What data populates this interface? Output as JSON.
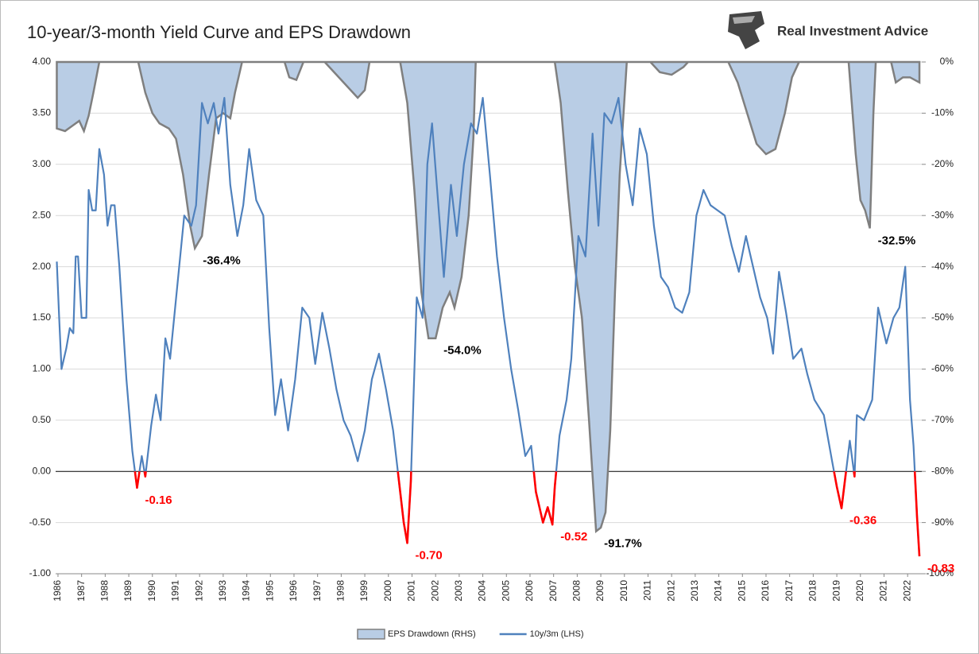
{
  "chart_data": {
    "type": "line",
    "title": "10-year/3-month Yield Curve and EPS Drawdown",
    "source": "Real Investment Advice",
    "xlim": [
      1985.9,
      2022.6
    ],
    "xticks": [
      1986,
      1987,
      1988,
      1989,
      1990,
      1991,
      1992,
      1993,
      1994,
      1995,
      1996,
      1997,
      1998,
      1999,
      2000,
      2001,
      2002,
      2003,
      2004,
      2005,
      2006,
      2007,
      2008,
      2009,
      2010,
      2011,
      2012,
      2013,
      2014,
      2015,
      2016,
      2017,
      2018,
      2019,
      2020,
      2021,
      2022
    ],
    "ylim": [
      -1,
      4
    ],
    "yticks": [
      {
        "value": -1,
        "label": "-1.00"
      },
      {
        "value": -0.5,
        "label": "-0.50"
      },
      {
        "value": 0,
        "label": "0.00"
      },
      {
        "value": 0.5,
        "label": "0.50"
      },
      {
        "value": 1,
        "label": "1.00"
      },
      {
        "value": 1.5,
        "label": "1.50"
      },
      {
        "value": 2,
        "label": "2.00"
      },
      {
        "value": 2.5,
        "label": "2.50"
      },
      {
        "value": 3,
        "label": "3.00"
      },
      {
        "value": 3.5,
        "label": "3.50"
      },
      {
        "value": 4,
        "label": "4.00"
      }
    ],
    "y2lim": [
      -100,
      0
    ],
    "y2ticks": [
      {
        "value": -100,
        "label": "-100%"
      },
      {
        "value": -90,
        "label": "-90%"
      },
      {
        "value": -80,
        "label": "-80%"
      },
      {
        "value": -70,
        "label": "-70%"
      },
      {
        "value": -60,
        "label": "-60%"
      },
      {
        "value": -50,
        "label": "-50%"
      },
      {
        "value": -40,
        "label": "-40%"
      },
      {
        "value": -30,
        "label": "-30%"
      },
      {
        "value": -20,
        "label": "-20%"
      },
      {
        "value": -10,
        "label": "-10%"
      },
      {
        "value": 0,
        "label": "0%"
      }
    ],
    "grid": true,
    "legend": "bottom",
    "series": [
      {
        "name": "EPS Drawdown (RHS)",
        "type": "area",
        "axis": "y2",
        "color": "#b9cde5",
        "edge_color": "#7f7f7f",
        "x": [
          1985.95,
          1986.3,
          1986.6,
          1986.9,
          1987.1,
          1987.3,
          1987.5,
          1987.75,
          1989.4,
          1989.7,
          1990.0,
          1990.3,
          1990.7,
          1991.0,
          1991.3,
          1991.6,
          1991.8,
          1992.1,
          1992.4,
          1992.7,
          1993.0,
          1993.3,
          1993.5,
          1993.8,
          1995.6,
          1995.8,
          1996.1,
          1996.4,
          1997.3,
          1997.7,
          1998.1,
          1998.5,
          1998.7,
          1999.0,
          1999.2,
          2000.5,
          2000.8,
          2001.1,
          2001.4,
          2001.7,
          2002.0,
          2002.3,
          2002.6,
          2002.8,
          2003.1,
          2003.4,
          2003.6,
          2003.7,
          2007.05,
          2007.3,
          2007.6,
          2007.9,
          2008.2,
          2008.5,
          2008.8,
          2009.0,
          2009.2,
          2009.4,
          2009.6,
          2009.8,
          2010.1,
          2011.1,
          2011.5,
          2012.0,
          2012.5,
          2012.7,
          2014.4,
          2014.8,
          2015.2,
          2015.6,
          2016.0,
          2016.4,
          2016.8,
          2017.1,
          2017.4,
          2019.5,
          2019.8,
          2020.0,
          2020.2,
          2020.4,
          2020.55,
          2020.65,
          2021.3,
          2021.5,
          2021.8,
          2022.1,
          2022.3,
          2022.5
        ],
        "values": [
          -13,
          -13.5,
          -12.5,
          -11.5,
          -13.5,
          -10.5,
          -6,
          0,
          0,
          -6,
          -10,
          -12,
          -13,
          -15,
          -22,
          -32,
          -36.4,
          -34,
          -22,
          -11,
          -10,
          -11,
          -6,
          0,
          0,
          -3,
          -3.5,
          0,
          0,
          -2,
          -4,
          -6,
          -7,
          -5.5,
          0,
          0,
          -8,
          -25,
          -45,
          -54,
          -54,
          -48,
          -45,
          -48,
          -42,
          -30,
          -15,
          0,
          0,
          -8,
          -25,
          -40,
          -50,
          -70,
          -91.7,
          -91,
          -88,
          -72,
          -45,
          -22,
          0,
          0,
          -2,
          -2.5,
          -1,
          0,
          0,
          -4,
          -10,
          -16,
          -18,
          -17,
          -10,
          -3,
          0,
          0,
          -18,
          -27,
          -29,
          -32.5,
          -10,
          0,
          0,
          -4,
          -3,
          -3,
          -3.5,
          -4
        ]
      },
      {
        "name": "10y/3m (LHS)",
        "color": "#4f81bd",
        "negative_color": "#ff0000",
        "x": [
          1985.95,
          1986.05,
          1986.15,
          1986.35,
          1986.5,
          1986.65,
          1986.75,
          1986.85,
          1987.0,
          1987.2,
          1987.3,
          1987.45,
          1987.6,
          1987.75,
          1987.95,
          1988.1,
          1988.25,
          1988.4,
          1988.6,
          1988.9,
          1989.15,
          1989.35,
          1989.55,
          1989.7,
          1989.95,
          1990.15,
          1990.35,
          1990.55,
          1990.75,
          1991.05,
          1991.35,
          1991.65,
          1991.85,
          1992.1,
          1992.35,
          1992.6,
          1992.8,
          1993.05,
          1993.3,
          1993.6,
          1993.85,
          1994.1,
          1994.4,
          1994.7,
          1994.95,
          1995.2,
          1995.45,
          1995.75,
          1996.05,
          1996.35,
          1996.65,
          1996.9,
          1997.2,
          1997.5,
          1997.8,
          1998.1,
          1998.4,
          1998.7,
          1999.0,
          1999.3,
          1999.6,
          1999.9,
          2000.2,
          2000.45,
          2000.65,
          2000.8,
          2000.95,
          2001.2,
          2001.45,
          2001.65,
          2001.85,
          2002.15,
          2002.35,
          2002.65,
          2002.9,
          2003.2,
          2003.5,
          2003.75,
          2004.0,
          2004.3,
          2004.6,
          2004.9,
          2005.2,
          2005.5,
          2005.8,
          2006.05,
          2006.25,
          2006.55,
          2006.75,
          2006.95,
          2007.05,
          2007.25,
          2007.55,
          2007.75,
          2008.05,
          2008.35,
          2008.65,
          2008.9,
          2009.15,
          2009.45,
          2009.75,
          2010.05,
          2010.35,
          2010.65,
          2010.95,
          2011.25,
          2011.55,
          2011.85,
          2012.15,
          2012.45,
          2012.75,
          2013.05,
          2013.35,
          2013.65,
          2013.95,
          2014.25,
          2014.55,
          2014.85,
          2015.15,
          2015.45,
          2015.75,
          2016.05,
          2016.3,
          2016.55,
          2016.85,
          2017.15,
          2017.5,
          2017.75,
          2018.05,
          2018.45,
          2018.8,
          2019.0,
          2019.2,
          2019.55,
          2019.75,
          2019.85,
          2020.15,
          2020.5,
          2020.75,
          2021.1,
          2021.4,
          2021.65,
          2021.9,
          2022.1,
          2022.25,
          2022.4,
          2022.5
        ],
        "values": [
          2.05,
          1.5,
          1.0,
          1.2,
          1.4,
          1.35,
          2.1,
          2.1,
          1.5,
          1.5,
          2.75,
          2.55,
          2.55,
          3.15,
          2.9,
          2.4,
          2.6,
          2.6,
          2.0,
          0.9,
          0.2,
          -0.16,
          0.15,
          -0.05,
          0.45,
          0.75,
          0.5,
          1.3,
          1.1,
          1.8,
          2.5,
          2.4,
          2.6,
          3.6,
          3.4,
          3.6,
          3.3,
          3.65,
          2.8,
          2.3,
          2.6,
          3.15,
          2.65,
          2.5,
          1.4,
          0.55,
          0.9,
          0.4,
          0.9,
          1.6,
          1.5,
          1.05,
          1.55,
          1.2,
          0.8,
          0.5,
          0.35,
          0.1,
          0.4,
          0.9,
          1.15,
          0.8,
          0.4,
          -0.1,
          -0.5,
          -0.7,
          -0.1,
          1.7,
          1.5,
          3.0,
          3.4,
          2.5,
          1.9,
          2.8,
          2.3,
          3.0,
          3.4,
          3.3,
          3.65,
          2.9,
          2.1,
          1.5,
          1.0,
          0.6,
          0.15,
          0.25,
          -0.2,
          -0.5,
          -0.35,
          -0.52,
          -0.15,
          0.35,
          0.7,
          1.1,
          2.3,
          2.1,
          3.3,
          2.4,
          3.5,
          3.4,
          3.65,
          3.0,
          2.6,
          3.35,
          3.1,
          2.4,
          1.9,
          1.8,
          1.6,
          1.55,
          1.75,
          2.5,
          2.75,
          2.6,
          2.55,
          2.5,
          2.2,
          1.95,
          2.3,
          2.0,
          1.7,
          1.5,
          1.15,
          1.95,
          1.55,
          1.1,
          1.2,
          0.95,
          0.7,
          0.55,
          0.1,
          -0.15,
          -0.36,
          0.3,
          -0.05,
          0.55,
          0.5,
          0.7,
          1.6,
          1.25,
          1.5,
          1.6,
          2.0,
          0.7,
          0.25,
          -0.45,
          -0.83
        ]
      }
    ],
    "annotations": [
      {
        "text": "-36.4%",
        "x": 1991.8,
        "y": -36.4,
        "axis": "y2",
        "color": "#000000"
      },
      {
        "text": "-54.0%",
        "x": 2002.0,
        "y": -54,
        "axis": "y2",
        "color": "#000000"
      },
      {
        "text": "-91.7%",
        "x": 2008.8,
        "y": -91.7,
        "axis": "y2",
        "color": "#000000"
      },
      {
        "text": "-32.5%",
        "x": 2020.4,
        "y": -32.5,
        "axis": "y2",
        "color": "#000000"
      },
      {
        "text": "-0.16",
        "x": 1989.35,
        "y": -0.16,
        "color": "#ff0000"
      },
      {
        "text": "-0.70",
        "x": 2000.8,
        "y": -0.7,
        "color": "#ff0000"
      },
      {
        "text": "-0.52",
        "x": 2006.95,
        "y": -0.52,
        "color": "#ff0000"
      },
      {
        "text": "-0.36",
        "x": 2019.2,
        "y": -0.36,
        "color": "#ff0000"
      },
      {
        "text": "-0.83",
        "x": 2022.5,
        "y": -0.83,
        "color": "#ff0000"
      }
    ]
  }
}
